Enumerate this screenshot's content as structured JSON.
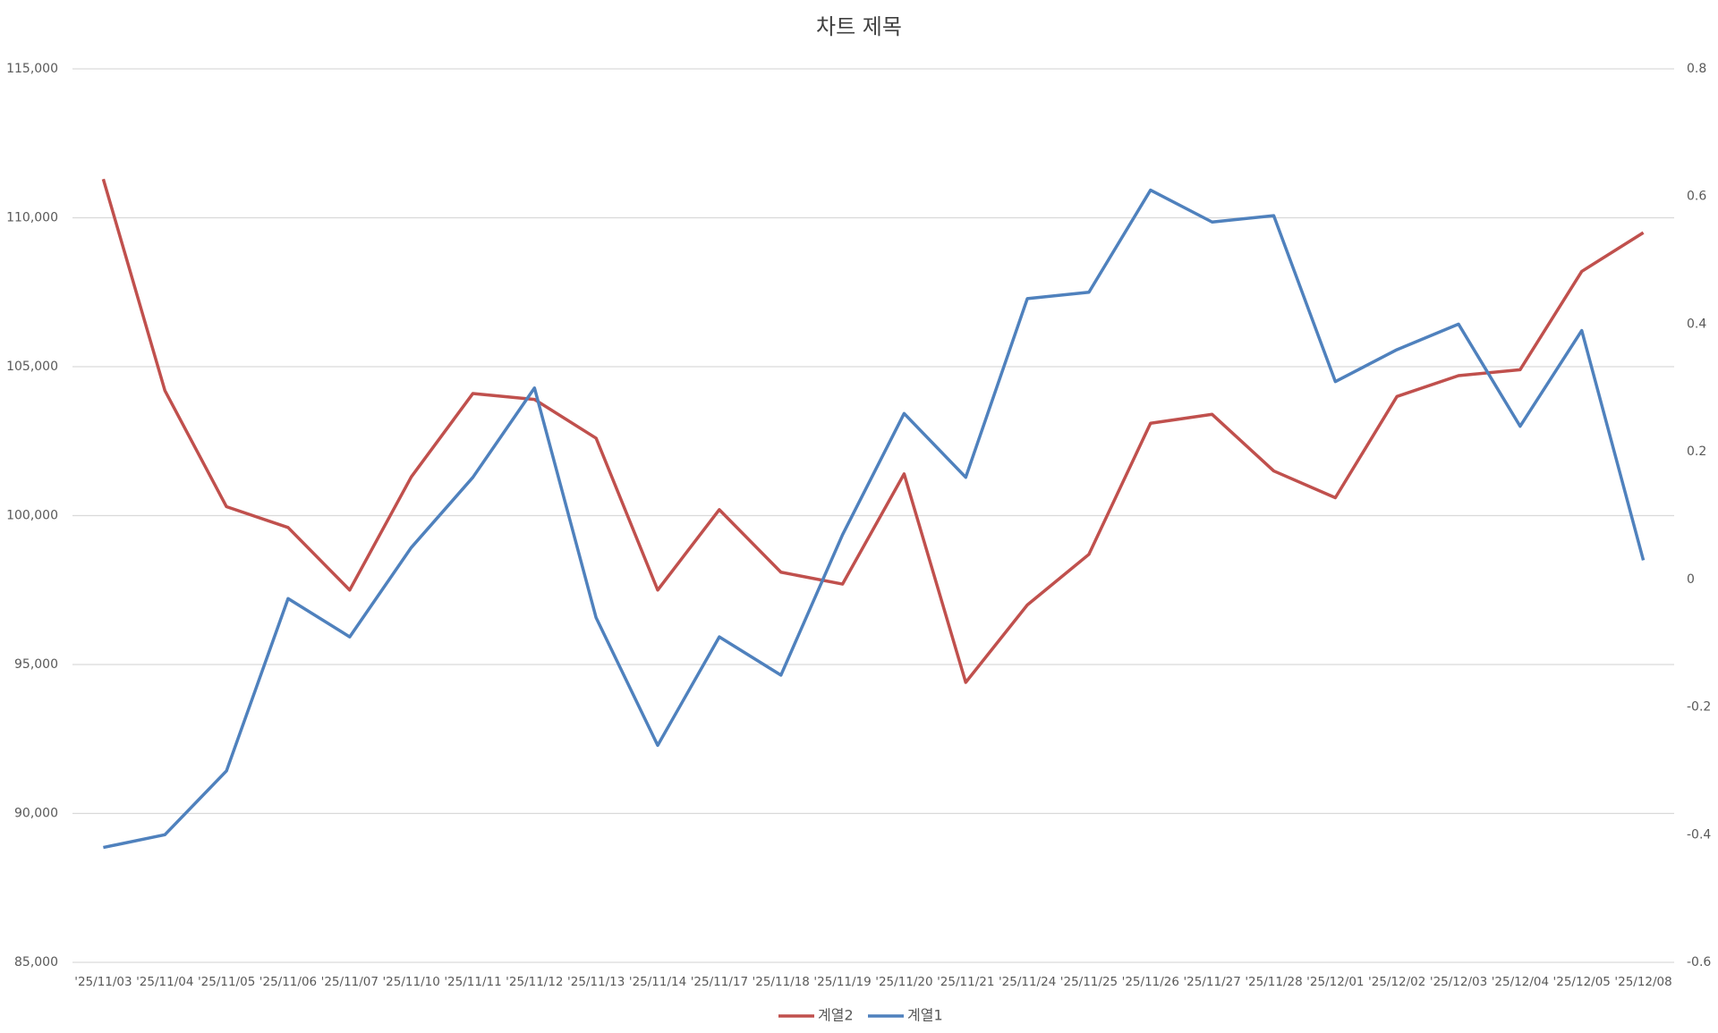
{
  "chart_data": {
    "type": "line",
    "title": "차트 제목",
    "categories": [
      "'25/11/03",
      "'25/11/04",
      "'25/11/05",
      "'25/11/06",
      "'25/11/07",
      "'25/11/10",
      "'25/11/11",
      "'25/11/12",
      "'25/11/13",
      "'25/11/14",
      "'25/11/17",
      "'25/11/18",
      "'25/11/19",
      "'25/11/20",
      "'25/11/21",
      "'25/11/24",
      "'25/11/25",
      "'25/11/26",
      "'25/11/27",
      "'25/11/28",
      "'25/12/01",
      "'25/12/02",
      "'25/12/03",
      "'25/12/04",
      "'25/12/05",
      "'25/12/08"
    ],
    "series": [
      {
        "name": "계열2",
        "color": "#c0504d",
        "axis": "y",
        "values": [
          111300,
          104200,
          100300,
          99600,
          97500,
          101300,
          104100,
          103900,
          102600,
          97500,
          100200,
          98100,
          97700,
          101400,
          94400,
          97000,
          98700,
          103100,
          103400,
          101500,
          100600,
          104000,
          104700,
          104900,
          108200,
          109500
        ]
      },
      {
        "name": "계열1",
        "color": "#4f81bd",
        "axis": "y2",
        "values": [
          -0.42,
          -0.4,
          -0.3,
          -0.03,
          -0.09,
          0.05,
          0.16,
          0.3,
          -0.06,
          -0.26,
          -0.09,
          -0.15,
          0.07,
          0.26,
          0.16,
          0.44,
          0.45,
          0.61,
          0.56,
          0.57,
          0.31,
          0.36,
          0.4,
          0.24,
          0.39,
          0.03
        ]
      }
    ],
    "ylim": [
      85000,
      115000
    ],
    "yticks": [
      {
        "value": 85000,
        "label": "85,000"
      },
      {
        "value": 90000,
        "label": "90,000"
      },
      {
        "value": 95000,
        "label": "95,000"
      },
      {
        "value": 100000,
        "label": "100,000"
      },
      {
        "value": 105000,
        "label": "105,000"
      },
      {
        "value": 110000,
        "label": "110,000"
      },
      {
        "value": 115000,
        "label": "115,000"
      }
    ],
    "y2lim": [
      -0.6,
      0.8
    ],
    "y2ticks": [
      -0.6,
      -0.4,
      -0.2,
      0,
      0.2,
      0.4,
      0.6,
      0.8
    ],
    "grid": true,
    "legend": "bottom"
  }
}
